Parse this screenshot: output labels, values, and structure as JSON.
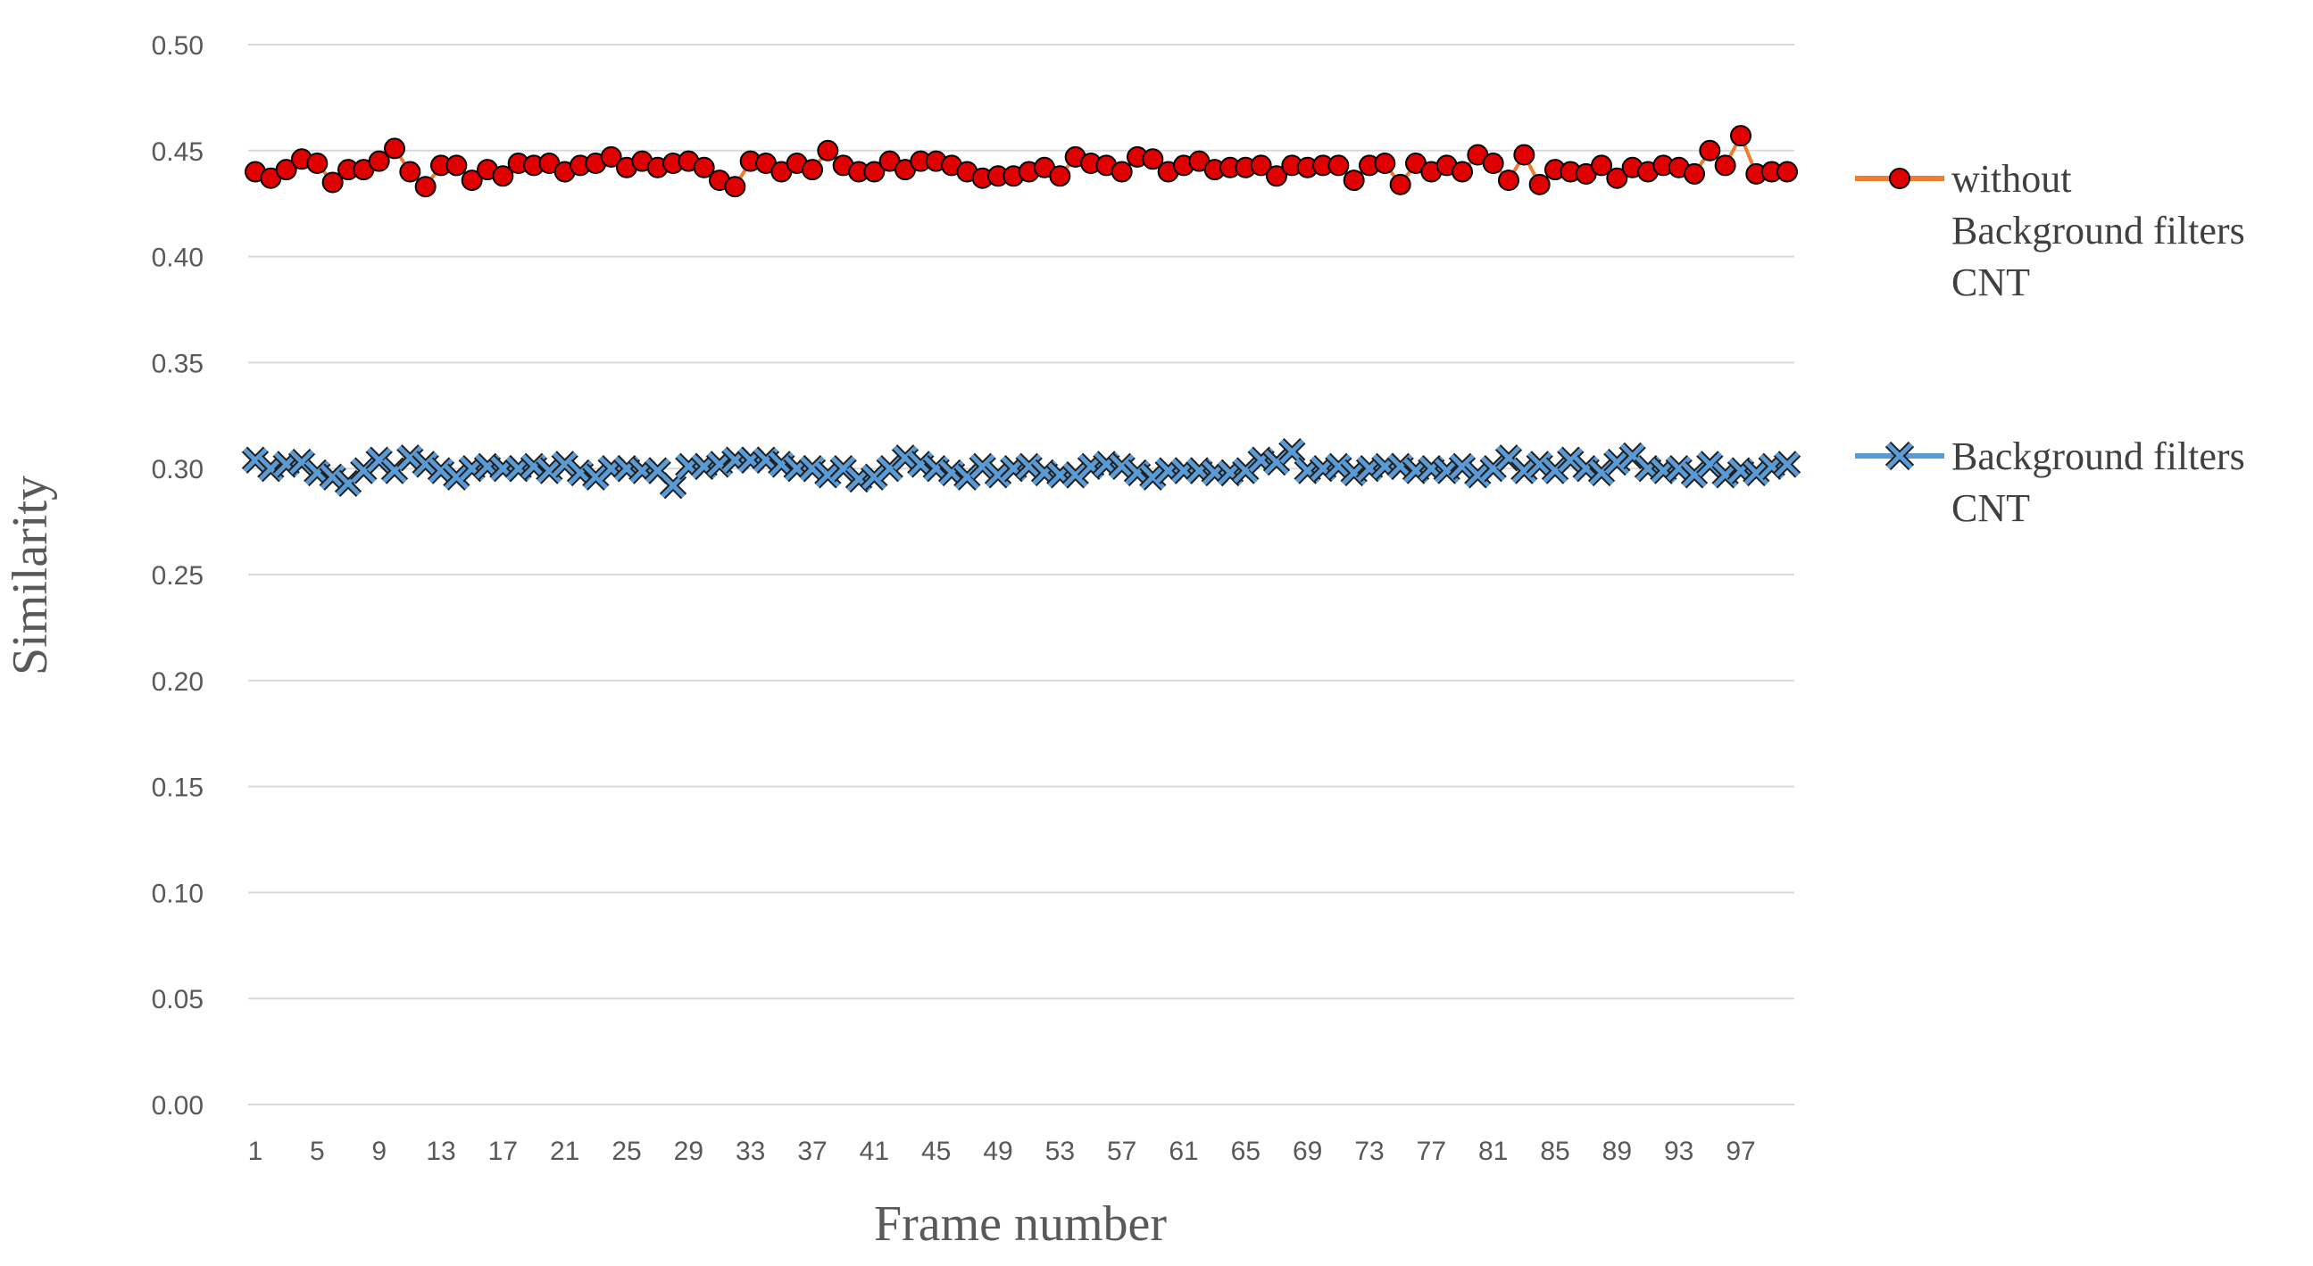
{
  "chart_data": {
    "type": "line",
    "xlabel": "Frame number",
    "ylabel": "Similarity",
    "ylim": [
      0,
      0.5
    ],
    "yticks": [
      "0.00",
      "0.05",
      "0.10",
      "0.15",
      "0.20",
      "0.25",
      "0.30",
      "0.35",
      "0.40",
      "0.45",
      "0.50"
    ],
    "xticks": [
      "1",
      "5",
      "9",
      "13",
      "17",
      "21",
      "25",
      "29",
      "33",
      "37",
      "41",
      "45",
      "49",
      "53",
      "57",
      "61",
      "65",
      "69",
      "73",
      "77",
      "81",
      "85",
      "89",
      "93",
      "97"
    ],
    "x": [
      1,
      2,
      3,
      4,
      5,
      6,
      7,
      8,
      9,
      10,
      11,
      12,
      13,
      14,
      15,
      16,
      17,
      18,
      19,
      20,
      21,
      22,
      23,
      24,
      25,
      26,
      27,
      28,
      29,
      30,
      31,
      32,
      33,
      34,
      35,
      36,
      37,
      38,
      39,
      40,
      41,
      42,
      43,
      44,
      45,
      46,
      47,
      48,
      49,
      50,
      51,
      52,
      53,
      54,
      55,
      56,
      57,
      58,
      59,
      60,
      61,
      62,
      63,
      64,
      65,
      66,
      67,
      68,
      69,
      70,
      71,
      72,
      73,
      74,
      75,
      76,
      77,
      78,
      79,
      80,
      81,
      82,
      83,
      84,
      85,
      86,
      87,
      88,
      89,
      90,
      91,
      92,
      93,
      94,
      95,
      96,
      97,
      98,
      99,
      100
    ],
    "grid": true,
    "legend_position": "right",
    "series": [
      {
        "name_lines": [
          "without",
          "Background filters",
          "CNT"
        ],
        "line_color": "#ED7D31",
        "marker": "circle",
        "marker_color": "#E00000",
        "values": [
          0.44,
          0.437,
          0.441,
          0.446,
          0.444,
          0.435,
          0.441,
          0.441,
          0.445,
          0.451,
          0.44,
          0.433,
          0.443,
          0.443,
          0.436,
          0.441,
          0.438,
          0.444,
          0.443,
          0.444,
          0.44,
          0.443,
          0.444,
          0.447,
          0.442,
          0.445,
          0.442,
          0.444,
          0.445,
          0.442,
          0.436,
          0.433,
          0.445,
          0.444,
          0.44,
          0.444,
          0.441,
          0.45,
          0.443,
          0.44,
          0.44,
          0.445,
          0.441,
          0.445,
          0.445,
          0.443,
          0.44,
          0.437,
          0.438,
          0.438,
          0.44,
          0.442,
          0.438,
          0.447,
          0.444,
          0.443,
          0.44,
          0.447,
          0.446,
          0.44,
          0.443,
          0.445,
          0.441,
          0.442,
          0.442,
          0.443,
          0.438,
          0.443,
          0.442,
          0.443,
          0.443,
          0.436,
          0.443,
          0.444,
          0.434,
          0.444,
          0.44,
          0.443,
          0.44,
          0.448,
          0.444,
          0.436,
          0.448,
          0.434,
          0.441,
          0.44,
          0.439,
          0.443,
          0.437,
          0.442,
          0.44,
          0.443,
          0.442,
          0.439,
          0.45,
          0.443,
          0.457,
          0.439,
          0.44,
          0.44
        ]
      },
      {
        "name_lines": [
          "Background filters",
          "CNT"
        ],
        "line_color": "#5B9BD5",
        "marker": "x",
        "marker_color": "#5B9BD5",
        "values": [
          0.304,
          0.3,
          0.302,
          0.303,
          0.298,
          0.296,
          0.293,
          0.299,
          0.304,
          0.299,
          0.305,
          0.302,
          0.299,
          0.296,
          0.3,
          0.301,
          0.3,
          0.3,
          0.301,
          0.299,
          0.302,
          0.298,
          0.296,
          0.3,
          0.3,
          0.299,
          0.299,
          0.292,
          0.301,
          0.301,
          0.302,
          0.304,
          0.304,
          0.304,
          0.302,
          0.3,
          0.3,
          0.297,
          0.3,
          0.295,
          0.296,
          0.3,
          0.305,
          0.302,
          0.3,
          0.298,
          0.296,
          0.301,
          0.297,
          0.3,
          0.301,
          0.298,
          0.297,
          0.297,
          0.301,
          0.302,
          0.301,
          0.298,
          0.296,
          0.299,
          0.299,
          0.299,
          0.298,
          0.298,
          0.299,
          0.304,
          0.303,
          0.308,
          0.299,
          0.3,
          0.301,
          0.298,
          0.3,
          0.301,
          0.301,
          0.299,
          0.3,
          0.299,
          0.301,
          0.297,
          0.3,
          0.305,
          0.299,
          0.302,
          0.299,
          0.304,
          0.3,
          0.298,
          0.303,
          0.306,
          0.3,
          0.299,
          0.3,
          0.297,
          0.302,
          0.297,
          0.299,
          0.298,
          0.301,
          0.302
        ]
      }
    ]
  }
}
